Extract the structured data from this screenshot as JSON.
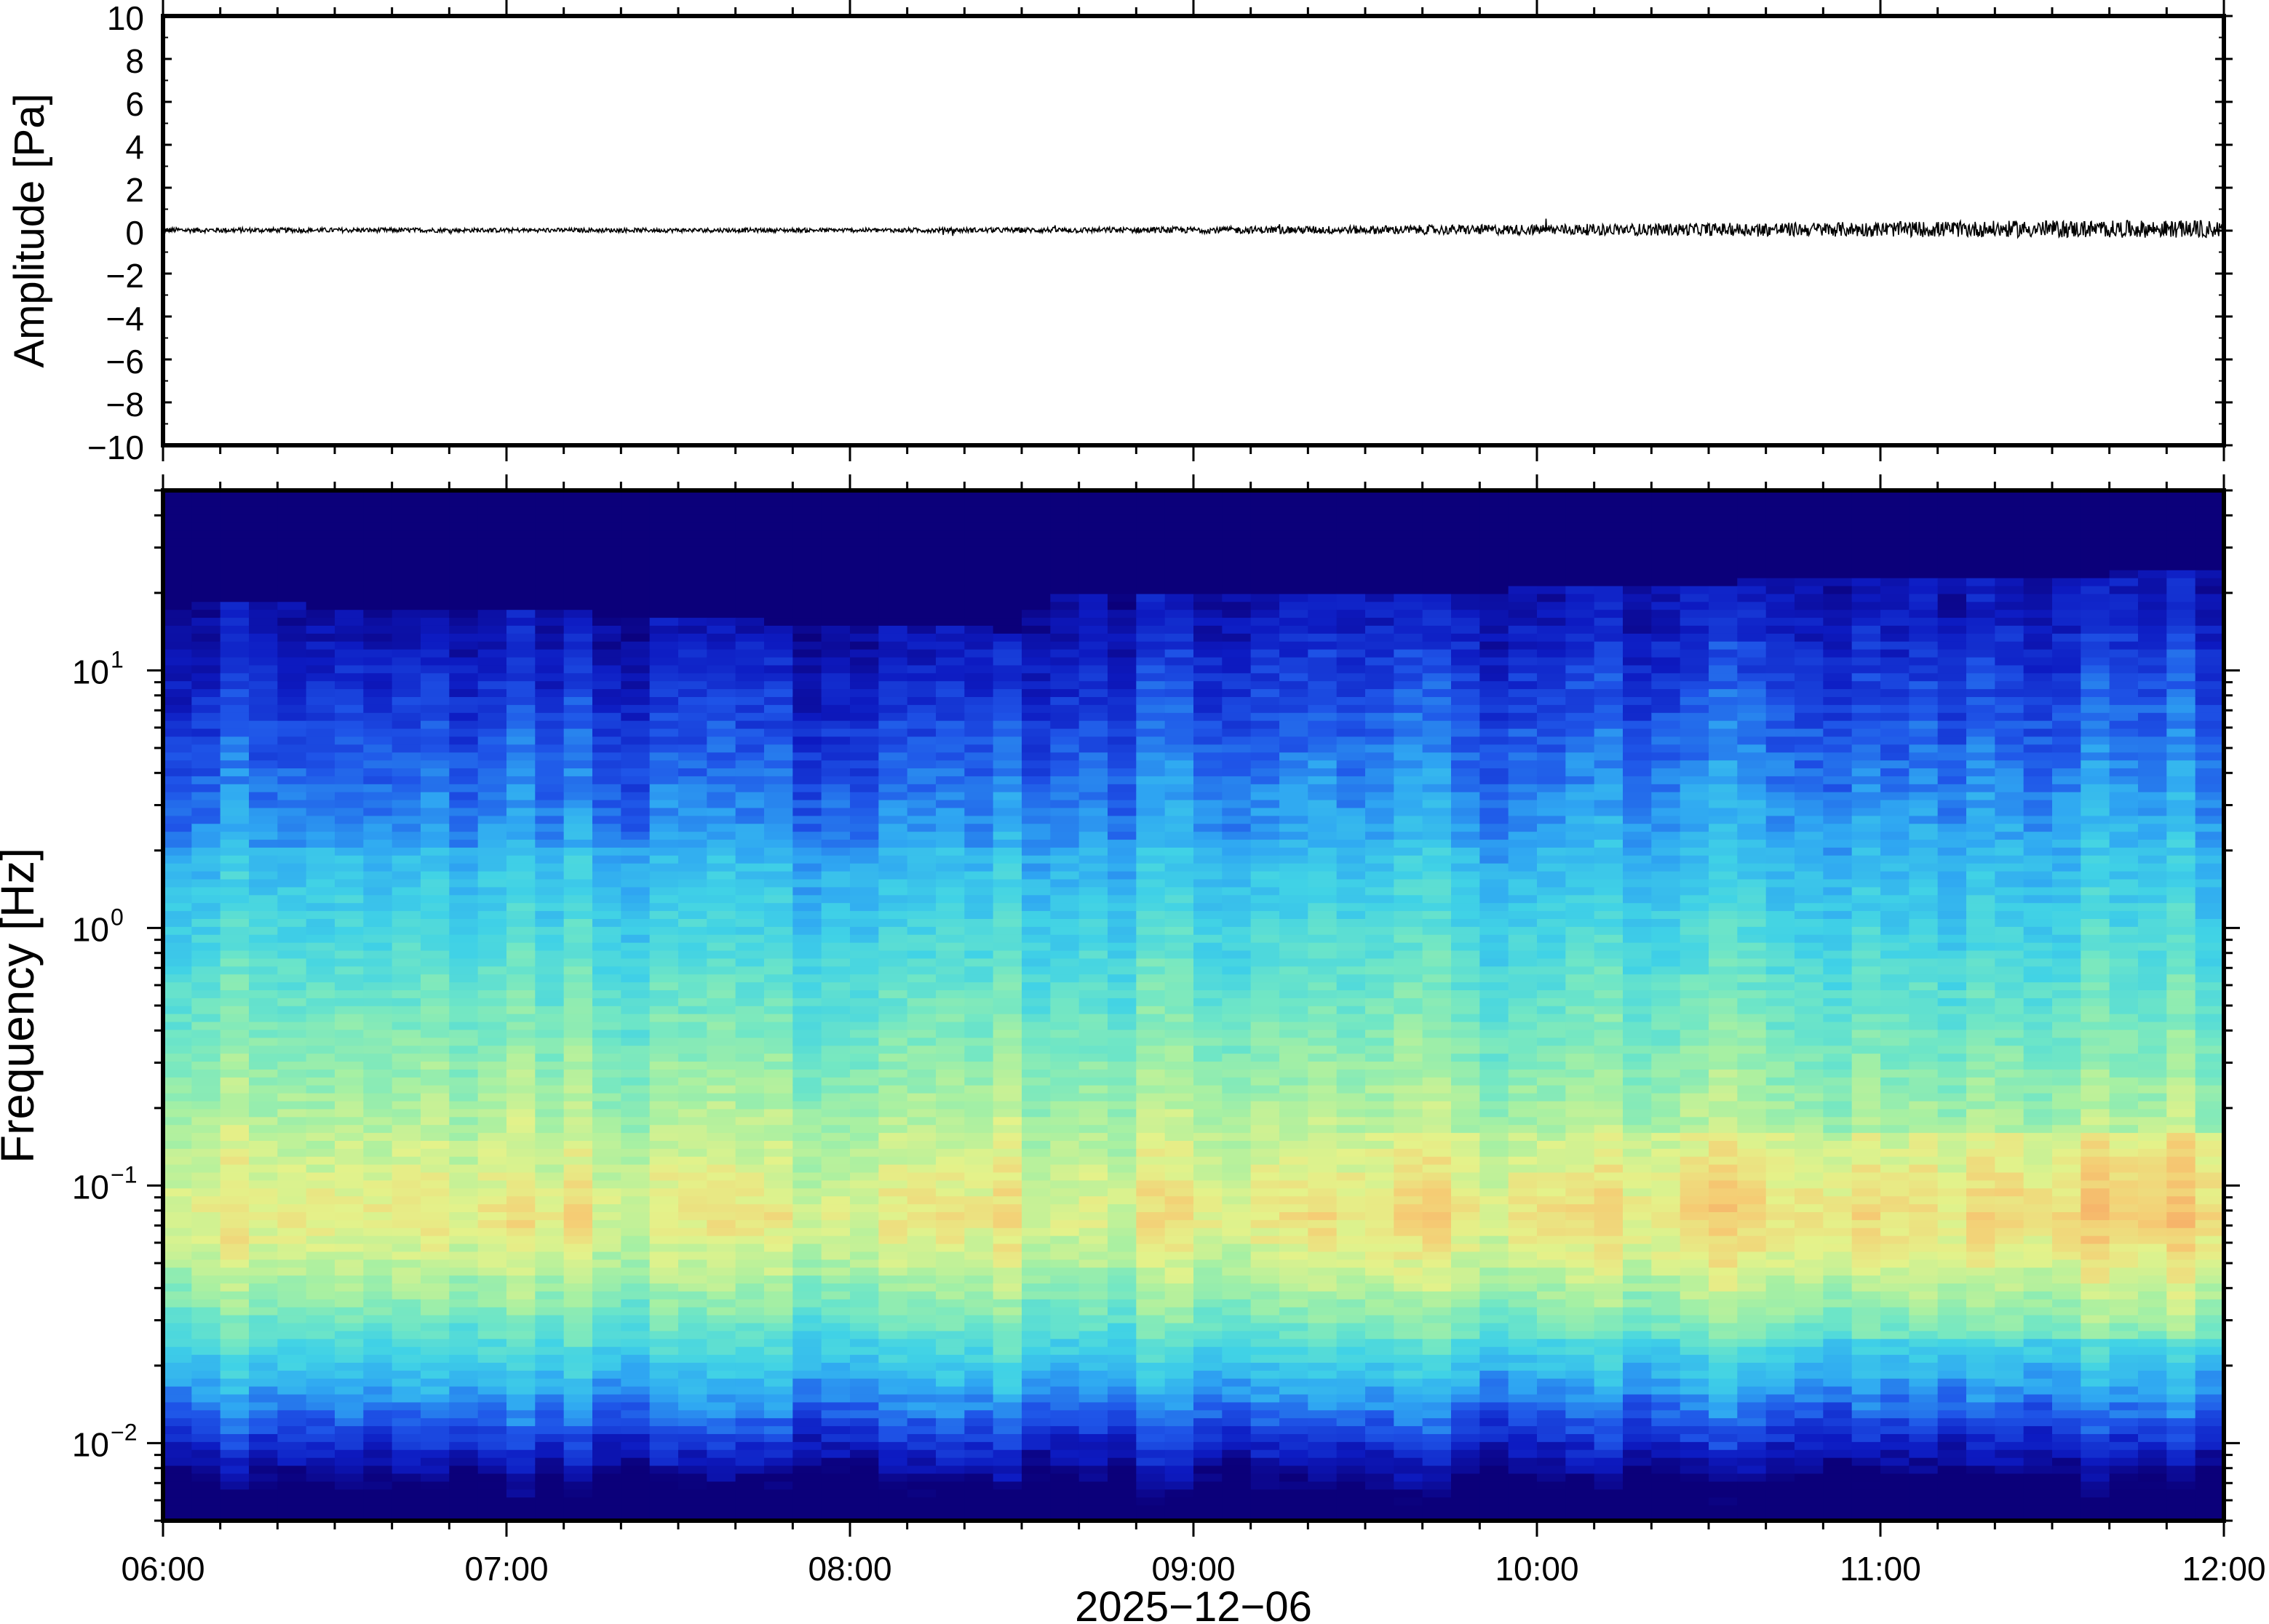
{
  "chart_data": [
    {
      "type": "line",
      "ylabel": "Amplitude [Pa]",
      "xlim": [
        "06:00",
        "12:00"
      ],
      "ylim": [
        -10,
        10
      ],
      "yticks": [
        -10,
        -8,
        -6,
        -4,
        -2,
        0,
        2,
        4,
        6,
        8,
        10
      ],
      "yticklabels": [
        "−10",
        "−8",
        "−6",
        "−4",
        "−2",
        "0",
        "2",
        "4",
        "6",
        "8",
        "10"
      ],
      "series": [
        {
          "x": [
            "06:00",
            "07:00",
            "08:00",
            "08:30",
            "09:00",
            "10:00",
            "11:00",
            "11:30",
            "12:00"
          ],
          "values": [
            0.1,
            0.08,
            0.08,
            0.1,
            0.12,
            0.18,
            0.25,
            0.3,
            0.3
          ],
          "envelope": [
            0.12,
            0.1,
            0.1,
            0.12,
            0.15,
            0.25,
            0.35,
            0.4,
            0.4
          ],
          "color": "#000000"
        }
      ],
      "grid": false
    },
    {
      "type": "heatmap",
      "ylabel": "Frequency [Hz]",
      "xlabel": "2025−12−06",
      "y_scale": "log",
      "ylim": [
        0.005,
        50
      ],
      "yticks": [
        0.01,
        0.1,
        1,
        10
      ],
      "yticklabels": [
        {
          "base": "10",
          "exp": "−2"
        },
        {
          "base": "10",
          "exp": "−1"
        },
        {
          "base": "10",
          "exp": "0"
        },
        {
          "base": "10",
          "exp": "1"
        }
      ],
      "xlim": [
        "06:00",
        "12:00"
      ],
      "xticklabels": [
        "06:00",
        "07:00",
        "08:00",
        "09:00",
        "10:00",
        "11:00",
        "12:00"
      ],
      "time_bins": 72,
      "freq_bins": 130,
      "colormap": [
        "#0b007a",
        "#0d1bc2",
        "#1f55e8",
        "#2fa7f2",
        "#40d2e6",
        "#6fe6c6",
        "#a8f0a2",
        "#e4f28a",
        "#f5cc74",
        "#f6a865"
      ],
      "max_freq_profile": {
        "times": [
          "06:00",
          "07:00",
          "08:00",
          "08:30",
          "08:33",
          "09:00",
          "10:00",
          "11:00",
          "12:00"
        ],
        "top_hz": [
          16,
          15,
          13,
          12.5,
          17,
          17,
          18,
          20,
          21
        ]
      },
      "grid": false
    }
  ]
}
